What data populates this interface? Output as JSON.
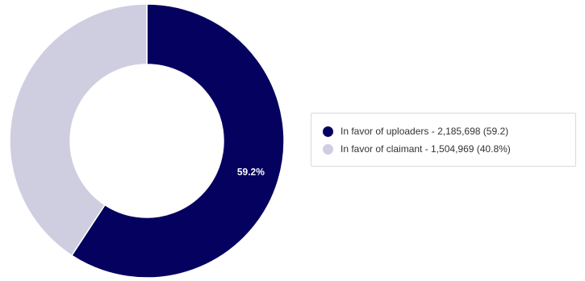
{
  "chart_data": {
    "type": "pie",
    "donut": true,
    "slices": [
      {
        "legend_text": "In favor of uploaders - 2,185,698 (59.2)",
        "value": 2185698,
        "percent_label": "59.2%",
        "color": "#05015f"
      },
      {
        "legend_text": "In favor of claimant - 1,504,969 (40.8%)",
        "value": 1504969,
        "percent_label": "",
        "color": "#cfcde0"
      }
    ],
    "legend_position": "right"
  }
}
